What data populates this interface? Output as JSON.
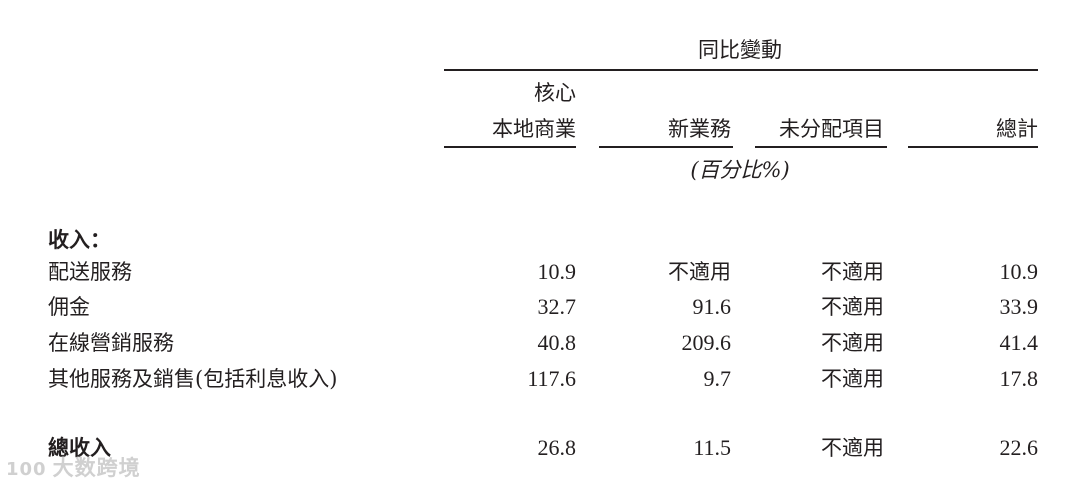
{
  "header": {
    "group_title": "同比變動",
    "columns": [
      {
        "line1": "核心",
        "line2": "本地商業"
      },
      {
        "line1": "",
        "line2": "新業務"
      },
      {
        "line1": "",
        "line2": "未分配項目"
      },
      {
        "line1": "",
        "line2": "總計"
      }
    ],
    "unit": "(百分比%)"
  },
  "section_label": "收入：",
  "rows": [
    {
      "label": "配送服務",
      "values": [
        "10.9",
        "不適用",
        "不適用",
        "10.9"
      ]
    },
    {
      "label": "佣金",
      "values": [
        "32.7",
        "91.6",
        "不適用",
        "33.9"
      ]
    },
    {
      "label": "在線營銷服務",
      "values": [
        "40.8",
        "209.6",
        "不適用",
        "41.4"
      ]
    },
    {
      "label": "其他服務及銷售(包括利息收入)",
      "values": [
        "117.6",
        "9.7",
        "不適用",
        "17.8"
      ]
    }
  ],
  "total": {
    "label": "總收入",
    "values": [
      "26.8",
      "11.5",
      "不適用",
      "22.6"
    ]
  },
  "watermark": {
    "logo": "100",
    "text": "大数跨境"
  }
}
